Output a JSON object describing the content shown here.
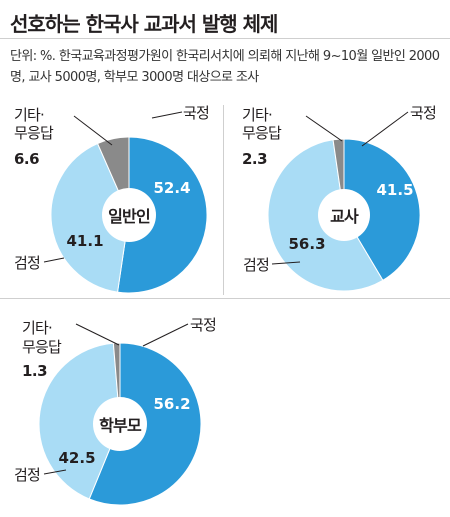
{
  "title": "선호하는 한국사 교과서 발행 체제",
  "note": "단위: %. 한국교육과정평가원이 한국리서치에 의뢰해 지난해 9~10월 일반인 2000명, 교사 5000명, 학부모 3000명 대상으로 조사",
  "labels": {
    "national": "국정",
    "approved": "검정",
    "other_line1": "기타·",
    "other_line2": "무응답"
  },
  "colors": {
    "national": "#2b9ad9",
    "approved": "#a9dcf5",
    "other": "#8a8a8a",
    "center": "#ffffff"
  },
  "chart_data": [
    {
      "type": "pie",
      "center_label": "일반인",
      "categories": [
        "국정",
        "검정",
        "기타·무응답"
      ],
      "values": [
        52.4,
        41.1,
        6.6
      ]
    },
    {
      "type": "pie",
      "center_label": "교사",
      "categories": [
        "국정",
        "검정",
        "기타·무응답"
      ],
      "values": [
        41.5,
        56.3,
        2.3
      ]
    },
    {
      "type": "pie",
      "center_label": "학부모",
      "categories": [
        "국정",
        "검정",
        "기타·무응답"
      ],
      "values": [
        56.2,
        42.5,
        1.3
      ]
    }
  ]
}
